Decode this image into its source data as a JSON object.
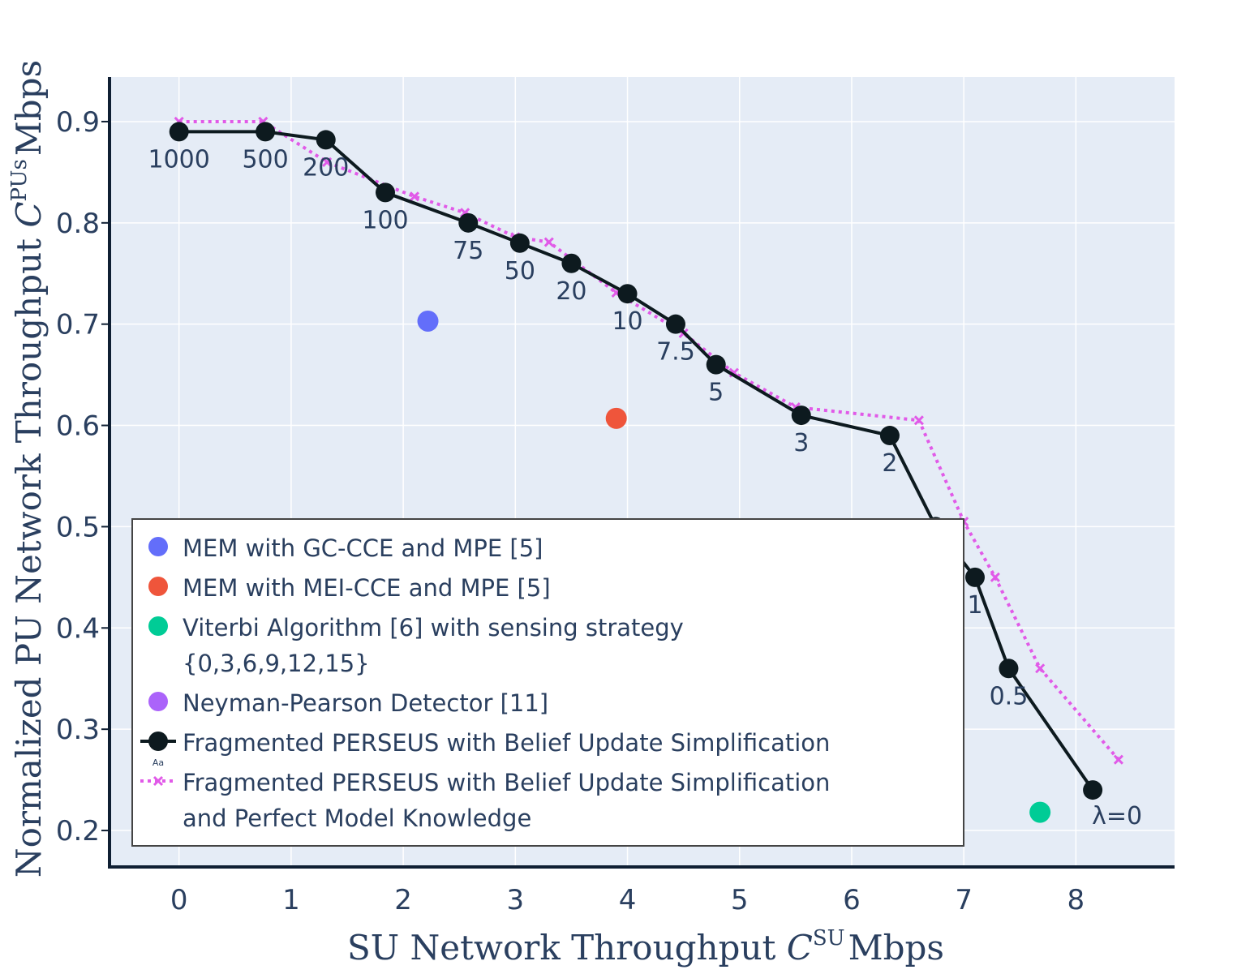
{
  "chart_data": {
    "type": "scatter",
    "xlabel": "SU Network Throughput C^SU Mbps",
    "xlabel_parts": {
      "main": "SU Network Throughput ",
      "sym": "C",
      "sup": "SU",
      "unit": "Mbps"
    },
    "ylabel": "Normalized PU Network Throughput C^PUs Mbps",
    "ylabel_parts": {
      "main": "Normalized PU Network Throughput ",
      "sym": "C",
      "sup": "PUs",
      "unit": "Mbps"
    },
    "xlim": [
      -0.62,
      8.88
    ],
    "ylim": [
      0.164,
      0.944
    ],
    "xticks": [
      0,
      1,
      2,
      3,
      4,
      5,
      6,
      7,
      8
    ],
    "yticks": [
      0.2,
      0.3,
      0.4,
      0.5,
      0.6,
      0.7,
      0.8,
      0.9
    ],
    "grid": true,
    "legend_position": "bottom-left",
    "series": [
      {
        "name": "MEM with GC-CCE and MPE [5]",
        "kind": "marker",
        "color": "#636efa",
        "x": [
          2.22
        ],
        "y": [
          0.703
        ]
      },
      {
        "name": "MEM with MEI-CCE and MPE [5]",
        "kind": "marker",
        "color": "#ef553b",
        "x": [
          3.9
        ],
        "y": [
          0.607
        ]
      },
      {
        "name": "Viterbi Algorithm [6] with sensing strategy {0,3,6,9,12,15}",
        "kind": "marker",
        "color": "#00cc96",
        "x": [
          7.68
        ],
        "y": [
          0.218
        ]
      },
      {
        "name": "Neyman-Pearson Detector [11]",
        "kind": "marker",
        "color": "#ab63fa",
        "x": [],
        "y": []
      },
      {
        "name": "Fragmented PERSEUS with Belief Update Simplification",
        "kind": "line-marker",
        "color": "#0d1a1f",
        "x": [
          0,
          0.77,
          1.31,
          1.84,
          2.58,
          3.04,
          3.5,
          4.0,
          4.43,
          4.79,
          5.55,
          6.34,
          6.75,
          7.1,
          7.4,
          8.15
        ],
        "y": [
          0.89,
          0.89,
          0.882,
          0.83,
          0.8,
          0.78,
          0.76,
          0.73,
          0.7,
          0.66,
          0.61,
          0.59,
          0.5,
          0.45,
          0.36,
          0.24
        ],
        "labels": [
          "1000",
          "500",
          "200",
          "100",
          "75",
          "50",
          "20",
          "10",
          "7.5",
          "5",
          "3",
          "2",
          "",
          "1",
          "0.5",
          "λ=0"
        ]
      },
      {
        "name": "Fragmented PERSEUS with Belief Update Simplification and Perfect Model Knowledge",
        "kind": "dotted-x",
        "color": "#e15ae8",
        "x": [
          0,
          0.75,
          1.32,
          2.1,
          2.55,
          3.0,
          3.3,
          3.9,
          4.5,
          4.95,
          5.5,
          6.6,
          7.0,
          7.28,
          7.68,
          8.38
        ],
        "y": [
          0.9,
          0.9,
          0.86,
          0.826,
          0.81,
          0.786,
          0.781,
          0.731,
          0.691,
          0.652,
          0.618,
          0.605,
          0.505,
          0.45,
          0.36,
          0.27
        ]
      }
    ]
  },
  "legend": {
    "items": [
      {
        "lines": [
          "MEM with GC-CCE and MPE [5]"
        ],
        "color": "#636efa",
        "symbol": "circle"
      },
      {
        "lines": [
          "MEM with MEI-CCE and MPE [5]"
        ],
        "color": "#ef553b",
        "symbol": "circle"
      },
      {
        "lines": [
          "Viterbi Algorithm [6] with sensing strategy",
          "{0,3,6,9,12,15}"
        ],
        "color": "#00cc96",
        "symbol": "circle"
      },
      {
        "lines": [
          "Neyman-Pearson Detector [11]"
        ],
        "color": "#ab63fa",
        "symbol": "circle"
      },
      {
        "lines": [
          "Fragmented PERSEUS with Belief Update Simplification"
        ],
        "color": "#0d1a1f",
        "symbol": "line-circle",
        "badge": "Aa"
      },
      {
        "lines": [
          "Fragmented PERSEUS with Belief Update Simplification",
          "and Perfect Model Knowledge"
        ],
        "color": "#e15ae8",
        "symbol": "dotted-x"
      }
    ]
  },
  "colors": {
    "plot_bg": "#e5ecf6",
    "grid": "#ffffff",
    "axis": "#0f1f33",
    "text": "#2a3f5f"
  }
}
